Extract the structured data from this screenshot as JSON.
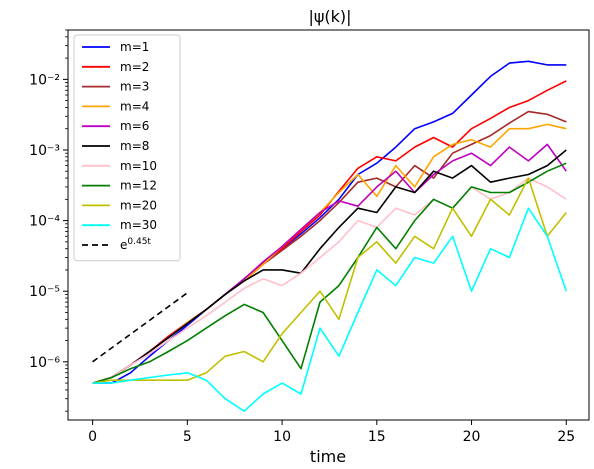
{
  "chart_data": {
    "type": "line",
    "title": "|ψ(k)|",
    "xlabel": "time",
    "ylabel": "",
    "xlim": [
      -1.3,
      26.2
    ],
    "ylim": [
      1.5e-07,
      0.05
    ],
    "yscale": "log",
    "grid": false,
    "legend_position": "upper-left",
    "x_ticks": [
      0,
      5,
      10,
      15,
      20,
      25
    ],
    "x_tick_labels": [
      "0",
      "5",
      "10",
      "15",
      "20",
      "25"
    ],
    "y_ticks": [
      1e-06,
      1e-05,
      0.0001,
      0.001,
      0.01
    ],
    "y_tick_labels": [
      "10⁻⁶",
      "10⁻⁵",
      "10⁻⁴",
      "10⁻³",
      "10⁻²"
    ],
    "series": [
      {
        "name": "m=1",
        "color": "#0000ff",
        "dash": "",
        "x": [
          0,
          1,
          2,
          3,
          4,
          5,
          6,
          7,
          8,
          9,
          10,
          11,
          12,
          13,
          14,
          15,
          16,
          17,
          18,
          19,
          20,
          21,
          22,
          23,
          24,
          25
        ],
        "y": [
          5e-07,
          5e-07,
          7e-07,
          1.2e-06,
          2e-06,
          3.3e-06,
          5.5e-06,
          9e-06,
          1.5e-05,
          2.5e-05,
          4e-05,
          6.5e-05,
          0.00011,
          0.0002,
          0.00045,
          0.00065,
          0.0011,
          0.002,
          0.0025,
          0.0033,
          0.006,
          0.011,
          0.017,
          0.018,
          0.016,
          0.016
        ]
      },
      {
        "name": "m=2",
        "color": "#ff0000",
        "dash": "",
        "x": [
          0,
          1,
          2,
          3,
          4,
          5,
          6,
          7,
          8,
          9,
          10,
          11,
          12,
          13,
          14,
          15,
          16,
          17,
          18,
          19,
          20,
          21,
          22,
          23,
          24,
          25
        ],
        "y": [
          5e-07,
          6e-07,
          9e-07,
          1.4e-06,
          2.3e-06,
          3.6e-06,
          5.5e-06,
          9e-06,
          1.4e-05,
          2.5e-05,
          4e-05,
          7e-05,
          0.00012,
          0.00026,
          0.00055,
          0.0008,
          0.0007,
          0.0011,
          0.0015,
          0.0011,
          0.002,
          0.0028,
          0.004,
          0.005,
          0.007,
          0.0095
        ]
      },
      {
        "name": "m=3",
        "color": "#a52a2a",
        "dash": "",
        "x": [
          0,
          1,
          2,
          3,
          4,
          5,
          6,
          7,
          8,
          9,
          10,
          11,
          12,
          13,
          14,
          15,
          16,
          17,
          18,
          19,
          20,
          21,
          22,
          23,
          24,
          25
        ],
        "y": [
          5e-07,
          6e-07,
          9e-07,
          1.4e-06,
          2.2e-06,
          3.5e-06,
          5.5e-06,
          9e-06,
          1.4e-05,
          2.4e-05,
          3.8e-05,
          6e-05,
          0.0001,
          0.00018,
          0.00035,
          0.0004,
          0.0003,
          0.0006,
          0.0004,
          0.0009,
          0.0012,
          0.0016,
          0.0024,
          0.0035,
          0.0032,
          0.0025
        ]
      },
      {
        "name": "m=4",
        "color": "#ffa500",
        "dash": "",
        "x": [
          0,
          1,
          2,
          3,
          4,
          5,
          6,
          7,
          8,
          9,
          10,
          11,
          12,
          13,
          14,
          15,
          16,
          17,
          18,
          19,
          20,
          21,
          22,
          23,
          24,
          25
        ],
        "y": [
          5e-07,
          6e-07,
          9e-07,
          1.4e-06,
          2.2e-06,
          3.6e-06,
          5.5e-06,
          9e-06,
          1.4e-05,
          2.4e-05,
          4.3e-05,
          7.5e-05,
          0.00013,
          0.00025,
          0.00045,
          0.00022,
          0.0006,
          0.0003,
          0.0008,
          0.0012,
          0.0014,
          0.0011,
          0.002,
          0.002,
          0.0023,
          0.002
        ]
      },
      {
        "name": "m=6",
        "color": "#c000c0",
        "dash": "",
        "x": [
          0,
          1,
          2,
          3,
          4,
          5,
          6,
          7,
          8,
          9,
          10,
          11,
          12,
          13,
          14,
          15,
          16,
          17,
          18,
          19,
          20,
          21,
          22,
          23,
          24,
          25
        ],
        "y": [
          5e-07,
          6e-07,
          9e-07,
          1.4e-06,
          2.2e-06,
          3.5e-06,
          5.5e-06,
          9e-06,
          1.5e-05,
          2.6e-05,
          4.3e-05,
          7.5e-05,
          0.00013,
          0.00019,
          0.00016,
          0.0003,
          0.0005,
          0.00025,
          0.00045,
          0.0007,
          0.0009,
          0.0006,
          0.0011,
          0.0007,
          0.0012,
          0.0005
        ]
      },
      {
        "name": "m=8",
        "color": "#000000",
        "dash": "",
        "x": [
          0,
          1,
          2,
          3,
          4,
          5,
          6,
          7,
          8,
          9,
          10,
          11,
          12,
          13,
          14,
          15,
          16,
          17,
          18,
          19,
          20,
          21,
          22,
          23,
          24,
          25
        ],
        "y": [
          5e-07,
          6e-07,
          9e-07,
          1.4e-06,
          2.2e-06,
          3.5e-06,
          5.5e-06,
          9e-06,
          1.4e-05,
          2e-05,
          2e-05,
          1.8e-05,
          4e-05,
          8e-05,
          0.00015,
          0.00013,
          0.0003,
          0.00025,
          0.0005,
          0.0004,
          0.0006,
          0.00035,
          0.0004,
          0.00045,
          0.0006,
          0.001
        ]
      },
      {
        "name": "m=10",
        "color": "#ffc0cb",
        "dash": "",
        "x": [
          0,
          1,
          2,
          3,
          4,
          5,
          6,
          7,
          8,
          9,
          10,
          11,
          12,
          13,
          14,
          15,
          16,
          17,
          18,
          19,
          20,
          21,
          22,
          23,
          24,
          25
        ],
        "y": [
          5e-07,
          6e-07,
          9e-07,
          1.3e-06,
          2e-06,
          3e-06,
          4.5e-06,
          7e-06,
          1.1e-05,
          1.5e-05,
          1.2e-05,
          1.8e-05,
          3e-05,
          5e-05,
          0.0001,
          8e-05,
          0.00015,
          0.00012,
          0.0002,
          0.00015,
          0.0003,
          0.0002,
          0.00025,
          0.0004,
          0.0003,
          0.0002
        ]
      },
      {
        "name": "m=12",
        "color": "#008000",
        "dash": "",
        "x": [
          0,
          1,
          2,
          3,
          4,
          5,
          6,
          7,
          8,
          9,
          10,
          11,
          12,
          13,
          14,
          15,
          16,
          17,
          18,
          19,
          20,
          21,
          22,
          23,
          24,
          25
        ],
        "y": [
          5e-07,
          6e-07,
          8e-07,
          1e-06,
          1.4e-06,
          2e-06,
          3e-06,
          4.5e-06,
          6.5e-06,
          5e-06,
          2e-06,
          8e-07,
          7e-06,
          1.2e-05,
          3e-05,
          8e-05,
          4e-05,
          0.0001,
          0.0002,
          0.00015,
          0.0003,
          0.00025,
          0.00025,
          0.00035,
          0.0005,
          0.00065
        ]
      },
      {
        "name": "m=20",
        "color": "#c0c000",
        "dash": "",
        "x": [
          0,
          1,
          2,
          3,
          4,
          5,
          6,
          7,
          8,
          9,
          10,
          11,
          12,
          13,
          14,
          15,
          16,
          17,
          18,
          19,
          20,
          21,
          22,
          23,
          24,
          25
        ],
        "y": [
          5e-07,
          5.5e-07,
          5.5e-07,
          5.5e-07,
          5.5e-07,
          5.5e-07,
          7e-07,
          1.2e-06,
          1.4e-06,
          1e-06,
          2.5e-06,
          5e-06,
          1e-05,
          4e-06,
          3e-05,
          5e-05,
          2.5e-05,
          6e-05,
          4e-05,
          0.00015,
          6e-05,
          0.0002,
          0.00012,
          0.0004,
          6e-05,
          0.00013
        ]
      },
      {
        "name": "m=30",
        "color": "#00ffff",
        "dash": "",
        "x": [
          0,
          1,
          2,
          3,
          4,
          5,
          6,
          7,
          8,
          9,
          10,
          11,
          12,
          13,
          14,
          15,
          16,
          17,
          18,
          19,
          20,
          21,
          22,
          23,
          24,
          25
        ],
        "y": [
          5e-07,
          5e-07,
          5.5e-07,
          6e-07,
          6.5e-07,
          7e-07,
          5.5e-07,
          3e-07,
          2e-07,
          3.5e-07,
          5e-07,
          3.5e-07,
          3e-06,
          1.2e-06,
          5e-06,
          2e-05,
          1.2e-05,
          3e-05,
          2.5e-05,
          6e-05,
          1e-05,
          4e-05,
          3e-05,
          0.00015,
          6e-05,
          1e-05
        ]
      },
      {
        "name": "e^{0.45t}",
        "color": "#000000",
        "dash": "6,4",
        "x": [
          0,
          5
        ],
        "y": [
          1e-06,
          9.5e-06
        ]
      }
    ]
  }
}
